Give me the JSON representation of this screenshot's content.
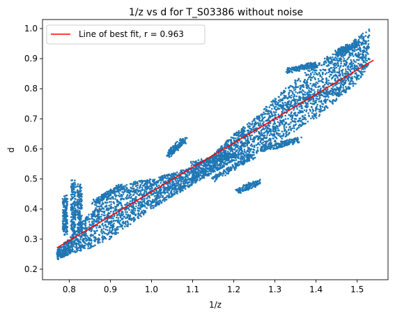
{
  "chart_data": {
    "type": "scatter",
    "title": "1/z vs d for T_S03386 without noise",
    "xlabel": "1/z",
    "ylabel": "d",
    "xlim": [
      0.735,
      1.575
    ],
    "ylim": [
      0.165,
      1.03
    ],
    "x_ticks": [
      0.8,
      0.9,
      1.0,
      1.1,
      1.2,
      1.3,
      1.4,
      1.5
    ],
    "y_ticks": [
      0.2,
      0.3,
      0.4,
      0.5,
      0.6,
      0.7,
      0.8,
      0.9,
      1.0
    ],
    "x_tick_labels": [
      "0.8",
      "0.9",
      "1.0",
      "1.1",
      "1.2",
      "1.3",
      "1.4",
      "1.5"
    ],
    "y_tick_labels": [
      "0.2",
      "0.3",
      "0.4",
      "0.5",
      "0.6",
      "0.7",
      "0.8",
      "0.9",
      "1.0"
    ],
    "grid": false,
    "legend_position": "top-left",
    "series": [
      {
        "kind": "scatter",
        "color": "#1f77b4",
        "band_upper": [
          [
            0.77,
            0.27
          ],
          [
            0.8,
            0.3
          ],
          [
            0.83,
            0.36
          ],
          [
            0.86,
            0.4
          ],
          [
            0.9,
            0.45
          ],
          [
            0.95,
            0.49
          ],
          [
            1.0,
            0.5
          ],
          [
            1.05,
            0.52
          ],
          [
            1.1,
            0.54
          ],
          [
            1.15,
            0.58
          ],
          [
            1.2,
            0.65
          ],
          [
            1.25,
            0.7
          ],
          [
            1.3,
            0.77
          ],
          [
            1.35,
            0.83
          ],
          [
            1.4,
            0.88
          ],
          [
            1.45,
            0.93
          ],
          [
            1.5,
            0.97
          ],
          [
            1.53,
            1.0
          ]
        ],
        "band_lower": [
          [
            0.77,
            0.23
          ],
          [
            0.8,
            0.25
          ],
          [
            0.85,
            0.27
          ],
          [
            0.9,
            0.3
          ],
          [
            0.95,
            0.35
          ],
          [
            1.0,
            0.4
          ],
          [
            1.05,
            0.44
          ],
          [
            1.1,
            0.48
          ],
          [
            1.15,
            0.52
          ],
          [
            1.2,
            0.56
          ],
          [
            1.25,
            0.58
          ],
          [
            1.3,
            0.62
          ],
          [
            1.35,
            0.66
          ],
          [
            1.4,
            0.7
          ],
          [
            1.45,
            0.76
          ],
          [
            1.5,
            0.82
          ],
          [
            1.53,
            0.88
          ]
        ],
        "features": [
          {
            "x": [
              0.81,
              0.81
            ],
            "y": [
              0.33,
              0.49
            ]
          },
          {
            "x": [
              0.825,
              0.825
            ],
            "y": [
              0.33,
              0.48
            ]
          },
          {
            "x": [
              0.79,
              0.79
            ],
            "y": [
              0.32,
              0.44
            ]
          },
          {
            "x": [
              0.86,
              0.93
            ],
            "y": [
              0.42,
              0.48
            ]
          },
          {
            "x": [
              1.04,
              1.08
            ],
            "y": [
              0.58,
              0.63
            ]
          },
          {
            "x": [
              1.1,
              1.2
            ],
            "y": [
              0.55,
              0.58
            ]
          },
          {
            "x": [
              1.15,
              1.25
            ],
            "y": [
              0.5,
              0.58
            ]
          },
          {
            "x": [
              1.21,
              1.26
            ],
            "y": [
              0.46,
              0.49
            ]
          },
          {
            "x": [
              1.27,
              1.36
            ],
            "y": [
              0.6,
              0.63
            ]
          },
          {
            "x": [
              1.31,
              1.47
            ],
            "y": [
              0.74,
              0.8
            ]
          },
          {
            "x": [
              1.33,
              1.4
            ],
            "y": [
              0.86,
              0.88
            ]
          },
          {
            "x": [
              1.45,
              1.5
            ],
            "y": [
              0.92,
              0.95
            ]
          }
        ]
      },
      {
        "kind": "line",
        "name": "Line of best fit, r = 0.963",
        "color": "#ff0000",
        "x": [
          0.77,
          1.54
        ],
        "y": [
          0.271,
          0.895
        ]
      }
    ]
  }
}
